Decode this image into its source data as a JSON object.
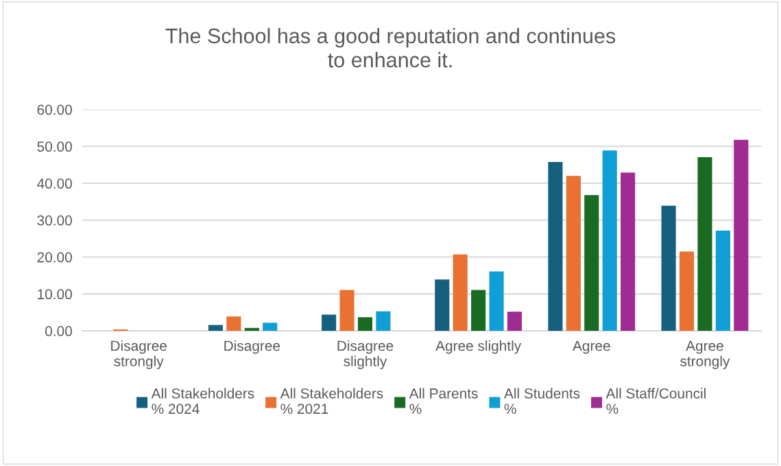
{
  "chart_data": {
    "type": "bar",
    "title": "The School has a good reputation and continues\nto enhance it.",
    "categories": [
      "Disagree\nstrongly",
      "Disagree",
      "Disagree\nslightly",
      "Agree slightly",
      "Agree",
      "Agree\nstrongly"
    ],
    "series": [
      {
        "name": "All Stakeholders\n% 2024",
        "color": "#16607f",
        "values": [
          0,
          1.6,
          4.4,
          13.9,
          45.8,
          33.9
        ]
      },
      {
        "name": "All Stakeholders\n% 2021",
        "color": "#e97132",
        "values": [
          0.4,
          3.9,
          11.1,
          20.7,
          42.0,
          21.5
        ]
      },
      {
        "name": "All Parents\n%",
        "color": "#196b24",
        "values": [
          0,
          0.8,
          3.7,
          11.1,
          36.8,
          47.1
        ]
      },
      {
        "name": "All Students\n%",
        "color": "#0f9ed5",
        "values": [
          0,
          2.2,
          5.3,
          16.1,
          48.9,
          27.2
        ]
      },
      {
        "name": "All Staff/Council\n%",
        "color": "#a02b93",
        "values": [
          0,
          0,
          0,
          5.2,
          42.9,
          51.8
        ]
      }
    ],
    "ylim": [
      0,
      60
    ],
    "yticks": [
      {
        "value": 0,
        "label": "0.00"
      },
      {
        "value": 10,
        "label": "10.00"
      },
      {
        "value": 20,
        "label": "20.00"
      },
      {
        "value": 30,
        "label": "30.00"
      },
      {
        "value": 40,
        "label": "40.00"
      },
      {
        "value": 50,
        "label": "50.00"
      },
      {
        "value": 60,
        "label": "60.00"
      }
    ],
    "grid": "y",
    "legend": "bottom"
  }
}
